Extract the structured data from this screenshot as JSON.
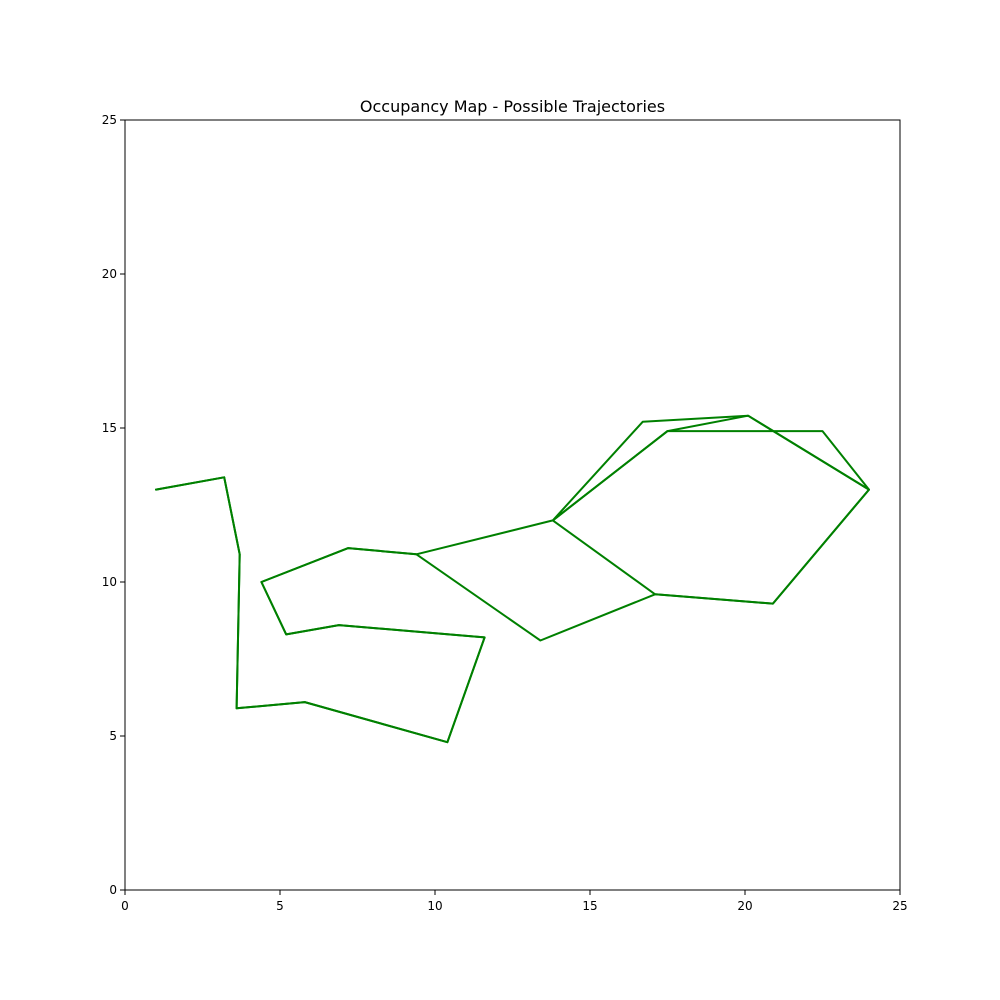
{
  "chart_data": {
    "type": "line",
    "title": "Occupancy Map - Possible Trajectories",
    "xlabel": "",
    "ylabel": "",
    "xlim": [
      0,
      25
    ],
    "ylim": [
      0,
      25
    ],
    "xticks": [
      0,
      5,
      10,
      15,
      20,
      25
    ],
    "yticks": [
      0,
      5,
      10,
      15,
      20,
      25
    ],
    "grid": false,
    "line_color": "#008000",
    "series": [
      {
        "points": [
          [
            1.0,
            13.0
          ],
          [
            3.2,
            13.4
          ],
          [
            3.7,
            10.9
          ],
          [
            3.6,
            5.9
          ],
          [
            5.8,
            6.1
          ],
          [
            10.4,
            4.8
          ],
          [
            11.6,
            8.2
          ],
          [
            6.9,
            8.6
          ],
          [
            5.2,
            8.3
          ],
          [
            4.4,
            10.0
          ],
          [
            7.2,
            11.1
          ],
          [
            9.4,
            10.9
          ],
          [
            13.8,
            12.0
          ],
          [
            17.5,
            14.9
          ],
          [
            20.1,
            15.4
          ],
          [
            24.0,
            13.0
          ],
          [
            20.9,
            9.3
          ],
          [
            17.1,
            9.6
          ],
          [
            13.8,
            12.0
          ]
        ]
      },
      {
        "points": [
          [
            1.0,
            13.0
          ],
          [
            3.2,
            13.4
          ],
          [
            3.7,
            10.9
          ],
          [
            3.6,
            5.9
          ],
          [
            5.8,
            6.1
          ],
          [
            10.4,
            4.8
          ],
          [
            11.6,
            8.2
          ],
          [
            6.9,
            8.6
          ],
          [
            5.2,
            8.3
          ],
          [
            4.4,
            10.0
          ],
          [
            7.2,
            11.1
          ],
          [
            9.4,
            10.9
          ],
          [
            13.4,
            8.1
          ],
          [
            17.1,
            9.6
          ],
          [
            20.9,
            9.3
          ],
          [
            24.0,
            13.0
          ],
          [
            22.5,
            14.9
          ],
          [
            17.5,
            14.9
          ],
          [
            13.8,
            12.0
          ],
          [
            16.7,
            15.2
          ],
          [
            20.1,
            15.4
          ],
          [
            24.0,
            13.0
          ]
        ]
      }
    ]
  }
}
